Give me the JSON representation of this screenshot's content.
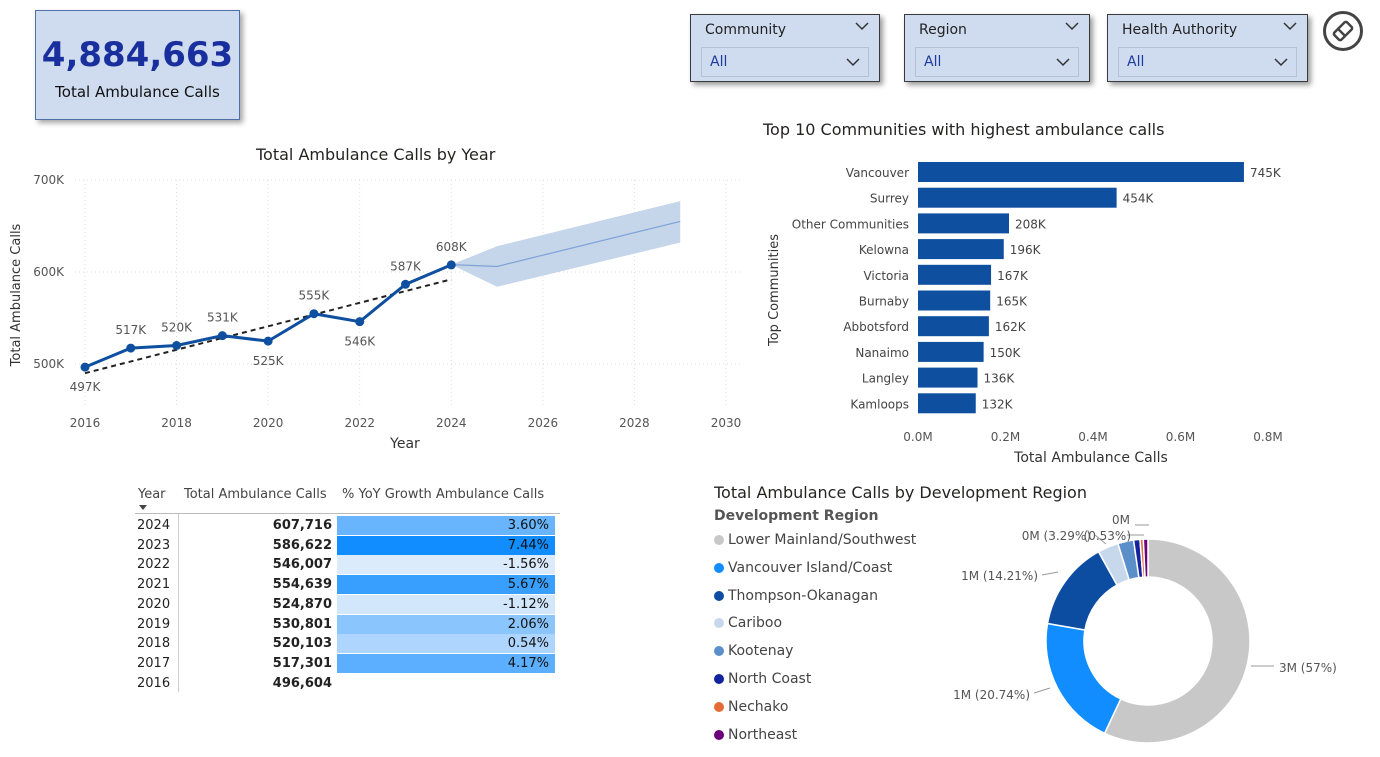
{
  "kpi": {
    "value": "4,884,663",
    "label": "Total Ambulance Calls"
  },
  "slicers": [
    {
      "title": "Community",
      "value": "All"
    },
    {
      "title": "Region",
      "value": "All"
    },
    {
      "title": "Health Authority",
      "value": "All"
    }
  ],
  "icons": {
    "clear_filters": "eraser-icon",
    "slicer_toggle": "chevron-down-icon",
    "sort": "sort-down-icon"
  },
  "line_chart": {
    "title": "Total Ambulance Calls by Year",
    "xlabel": "Year",
    "ylabel": "Total Ambulance Calls",
    "y_ticks": [
      "500K",
      "600K",
      "700K"
    ],
    "x_ticks": [
      "2016",
      "2018",
      "2020",
      "2022",
      "2024",
      "2026",
      "2028",
      "2030"
    ]
  },
  "bar_chart": {
    "title": "Top 10 Communities with highest ambulance calls",
    "xlabel": "Total Ambulance Calls",
    "ylabel": "Top Communities",
    "x_ticks": [
      "0.0M",
      "0.2M",
      "0.4M",
      "0.6M",
      "0.8M"
    ]
  },
  "table": {
    "headers": [
      "Year",
      "Total Ambulance Calls",
      "% YoY Growth Ambulance Calls"
    ],
    "rows": [
      {
        "year": "2024",
        "total": "607,716",
        "growth": "3.60%",
        "growth_value": 3.6
      },
      {
        "year": "2023",
        "total": "586,622",
        "growth": "7.44%",
        "growth_value": 7.44
      },
      {
        "year": "2022",
        "total": "546,007",
        "growth": "-1.56%",
        "growth_value": -1.56
      },
      {
        "year": "2021",
        "total": "554,639",
        "growth": "5.67%",
        "growth_value": 5.67
      },
      {
        "year": "2020",
        "total": "524,870",
        "growth": "-1.12%",
        "growth_value": -1.12
      },
      {
        "year": "2019",
        "total": "530,801",
        "growth": "2.06%",
        "growth_value": 2.06
      },
      {
        "year": "2018",
        "total": "520,103",
        "growth": "0.54%",
        "growth_value": 0.54
      },
      {
        "year": "2017",
        "total": "517,301",
        "growth": "4.17%",
        "growth_value": 4.17
      },
      {
        "year": "2016",
        "total": "496,604",
        "growth": "",
        "growth_value": null
      }
    ]
  },
  "donut_chart": {
    "title": "Total Ambulance Calls by Development Region",
    "legend_title": "Development Region"
  },
  "chart_data": [
    {
      "type": "line",
      "title": "Total Ambulance Calls by Year",
      "xlabel": "Year",
      "ylabel": "Total Ambulance Calls",
      "x": [
        2016,
        2017,
        2018,
        2019,
        2020,
        2021,
        2022,
        2023,
        2024
      ],
      "y": [
        496604,
        517301,
        520103,
        530801,
        524870,
        554639,
        546007,
        586622,
        607716
      ],
      "data_labels": [
        "497K",
        "517K",
        "520K",
        "531K",
        "525K",
        "555K",
        "546K",
        "587K",
        "608K"
      ],
      "trend_line": {
        "x": [
          2016,
          2024
        ],
        "y": [
          490000,
          592000
        ]
      },
      "forecast": {
        "x": [
          2024,
          2025,
          2029
        ],
        "y": [
          608000,
          606000,
          655000
        ],
        "upper": [
          608000,
          628000,
          677000
        ],
        "lower": [
          608000,
          584000,
          632000
        ]
      },
      "xlim": [
        2016,
        2030
      ],
      "ylim": [
        500000,
        700000
      ],
      "grid": true,
      "color": "#0e4fa0"
    },
    {
      "type": "bar",
      "orientation": "horizontal",
      "title": "Top 10 Communities with highest ambulance calls",
      "xlabel": "Total Ambulance Calls",
      "ylabel": "Top Communities",
      "categories": [
        "Vancouver",
        "Surrey",
        "Other Communities",
        "Kelowna",
        "Victoria",
        "Burnaby",
        "Abbotsford",
        "Nanaimo",
        "Langley",
        "Kamloops"
      ],
      "values": [
        745000,
        454000,
        208000,
        196000,
        167000,
        165000,
        162000,
        150000,
        136000,
        132000
      ],
      "data_labels": [
        "745K",
        "454K",
        "208K",
        "196K",
        "167K",
        "165K",
        "162K",
        "150K",
        "136K",
        "132K"
      ],
      "xlim": [
        0,
        800000
      ],
      "color": "#0e4fa0"
    },
    {
      "type": "pie",
      "style": "donut",
      "title": "Total Ambulance Calls by Development Region",
      "categories": [
        "Lower Mainland/Southwest",
        "Vancouver Island/Coast",
        "Thompson-Okanagan",
        "Cariboo",
        "Kootenay",
        "North Coast",
        "Nechako",
        "Northeast"
      ],
      "values": [
        57.0,
        20.74,
        14.21,
        3.29,
        2.5,
        1.0,
        0.53,
        0.73
      ],
      "colors": [
        "#c8c8c8",
        "#118dff",
        "#0d4da1",
        "#c8d8ec",
        "#5b8fc9",
        "#12239e",
        "#e66c37",
        "#6b007b"
      ],
      "data_labels": [
        "3M (57%)",
        "1M (20.74%)",
        "1M (14.21%)",
        "0M (3.29%)",
        "",
        "",
        "(0.53%)",
        "0M"
      ]
    }
  ]
}
